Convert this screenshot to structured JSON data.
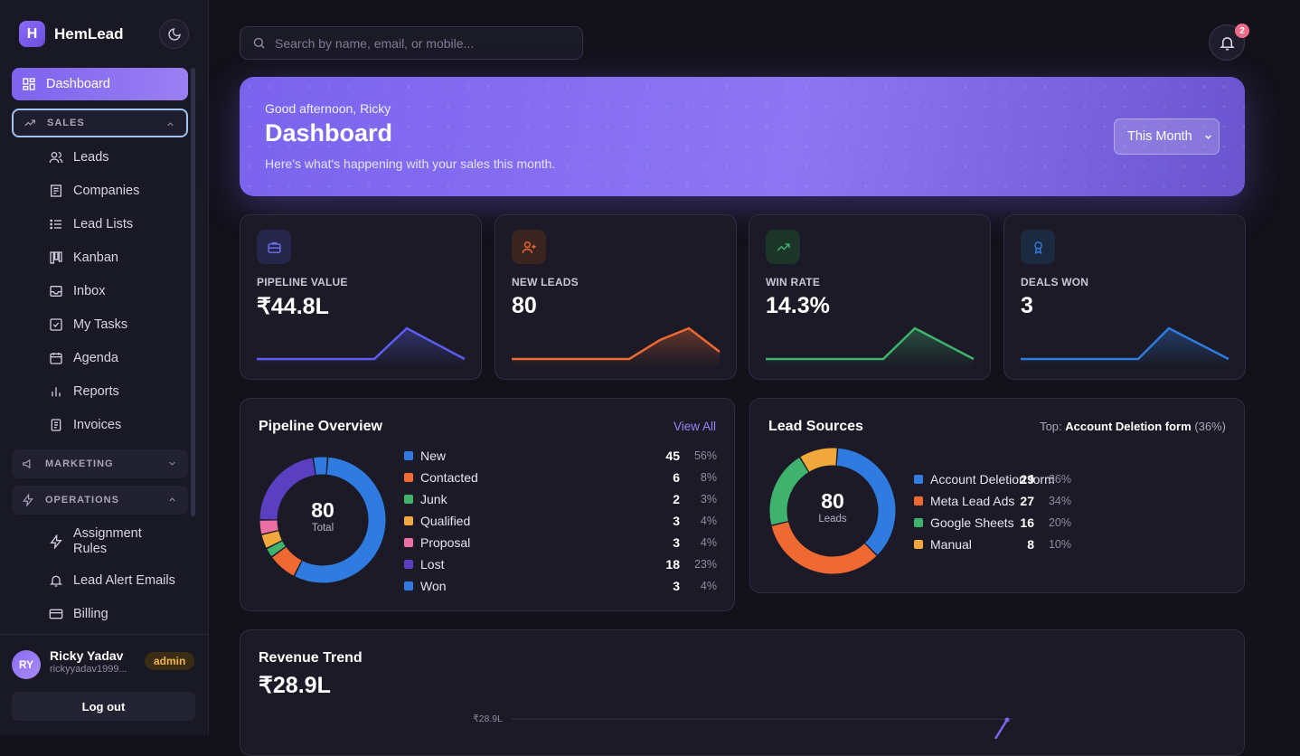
{
  "brand": {
    "name": "HemLead",
    "logo_letter": "H"
  },
  "sidebar": {
    "dashboard": "Dashboard",
    "sections": {
      "sales": {
        "label": "SALES",
        "items": [
          "Leads",
          "Companies",
          "Lead Lists",
          "Kanban",
          "Inbox",
          "My Tasks",
          "Agenda",
          "Reports",
          "Invoices"
        ]
      },
      "marketing": {
        "label": "MARKETING"
      },
      "operations": {
        "label": "OPERATIONS",
        "items": [
          "Assignment Rules",
          "Lead Alert Emails",
          "Billing"
        ]
      }
    },
    "user": {
      "initials": "RY",
      "name": "Ricky Yadav",
      "email": "rickyyadav1999...",
      "role": "admin"
    },
    "logout": "Log out"
  },
  "search": {
    "placeholder": "Search by name, email, or mobile..."
  },
  "notifications": {
    "count": "2"
  },
  "hero": {
    "greeting": "Good afternoon, Ricky",
    "title": "Dashboard",
    "subtitle": "Here's what's happening with your sales this month.",
    "period": "This Month"
  },
  "stats": [
    {
      "label": "PIPELINE VALUE",
      "value": "₹44.8L",
      "color": "#5b5ef0",
      "icon": "briefcase-icon"
    },
    {
      "label": "NEW LEADS",
      "value": "80",
      "color": "#ef6a33",
      "icon": "user-plus-icon"
    },
    {
      "label": "WIN RATE",
      "value": "14.3%",
      "color": "#3fb26e",
      "icon": "trending-up-icon"
    },
    {
      "label": "DEALS WON",
      "value": "3",
      "color": "#2f7be0",
      "icon": "award-icon"
    }
  ],
  "pipeline": {
    "title": "Pipeline Overview",
    "view_all": "View All",
    "total": "80",
    "total_label": "Total",
    "rows": [
      {
        "name": "New",
        "count": "45",
        "pct": "56%",
        "color": "#2f7be0"
      },
      {
        "name": "Contacted",
        "count": "6",
        "pct": "8%",
        "color": "#ef6a33"
      },
      {
        "name": "Junk",
        "count": "2",
        "pct": "3%",
        "color": "#3fb26e"
      },
      {
        "name": "Qualified",
        "count": "3",
        "pct": "4%",
        "color": "#f0a73c"
      },
      {
        "name": "Proposal",
        "count": "3",
        "pct": "4%",
        "color": "#ec70a4"
      },
      {
        "name": "Lost",
        "count": "18",
        "pct": "23%",
        "color": "#5a3fc0"
      },
      {
        "name": "Won",
        "count": "3",
        "pct": "4%",
        "color": "#2f7be0"
      }
    ]
  },
  "sources": {
    "title": "Lead Sources",
    "top_prefix": "Top:",
    "top_name": "Account Deletion form",
    "top_pct": "(36%)",
    "total": "80",
    "total_label": "Leads",
    "rows": [
      {
        "name": "Account Deletion form",
        "count": "29",
        "pct": "36%",
        "color": "#2f7be0"
      },
      {
        "name": "Meta Lead Ads",
        "count": "27",
        "pct": "34%",
        "color": "#ef6a33"
      },
      {
        "name": "Google Sheets",
        "count": "16",
        "pct": "20%",
        "color": "#3fb26e"
      },
      {
        "name": "Manual",
        "count": "8",
        "pct": "10%",
        "color": "#f0a73c"
      }
    ]
  },
  "revenue": {
    "title": "Revenue Trend",
    "value": "₹28.9L",
    "axis_label": "₹28.9L"
  }
}
